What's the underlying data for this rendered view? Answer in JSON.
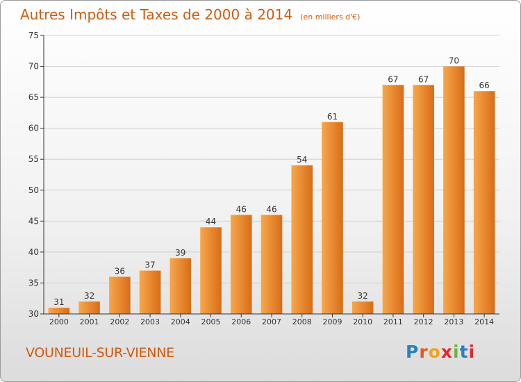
{
  "colors": {
    "accent": "#d25a10",
    "bar_light": "#f7a74d",
    "bar_dark": "#d86d16",
    "grid": "#cfcfcf",
    "axis": "#333333"
  },
  "chart_data": {
    "type": "bar",
    "title": "Autres Impôts et Taxes de 2000 à 2014",
    "subtitle": "(en milliers d'€)",
    "categories": [
      "2000",
      "2001",
      "2002",
      "2003",
      "2004",
      "2005",
      "2006",
      "2007",
      "2008",
      "2009",
      "2010",
      "2011",
      "2012",
      "2013",
      "2014"
    ],
    "values": [
      31,
      32,
      36,
      37,
      39,
      44,
      46,
      46,
      54,
      61,
      32,
      67,
      67,
      70,
      66
    ],
    "ylim": [
      30,
      75
    ],
    "yticks": [
      30,
      35,
      40,
      45,
      50,
      55,
      60,
      65,
      70,
      75
    ],
    "grid": true,
    "xlabel": "",
    "ylabel": ""
  },
  "footer": {
    "commune": "VOUNEUIL-SUR-VIENNE",
    "logo_letters": [
      {
        "char": "P",
        "color": "#2a7fc1"
      },
      {
        "char": "r",
        "color": "#e85a1a"
      },
      {
        "char": "o",
        "color": "#f2a21a"
      },
      {
        "char": "x",
        "color": "#e4262d"
      },
      {
        "char": "i",
        "color": "#6cb33f"
      },
      {
        "char": "t",
        "color": "#2a7fc1"
      },
      {
        "char": "i",
        "color": "#e4262d"
      }
    ]
  }
}
